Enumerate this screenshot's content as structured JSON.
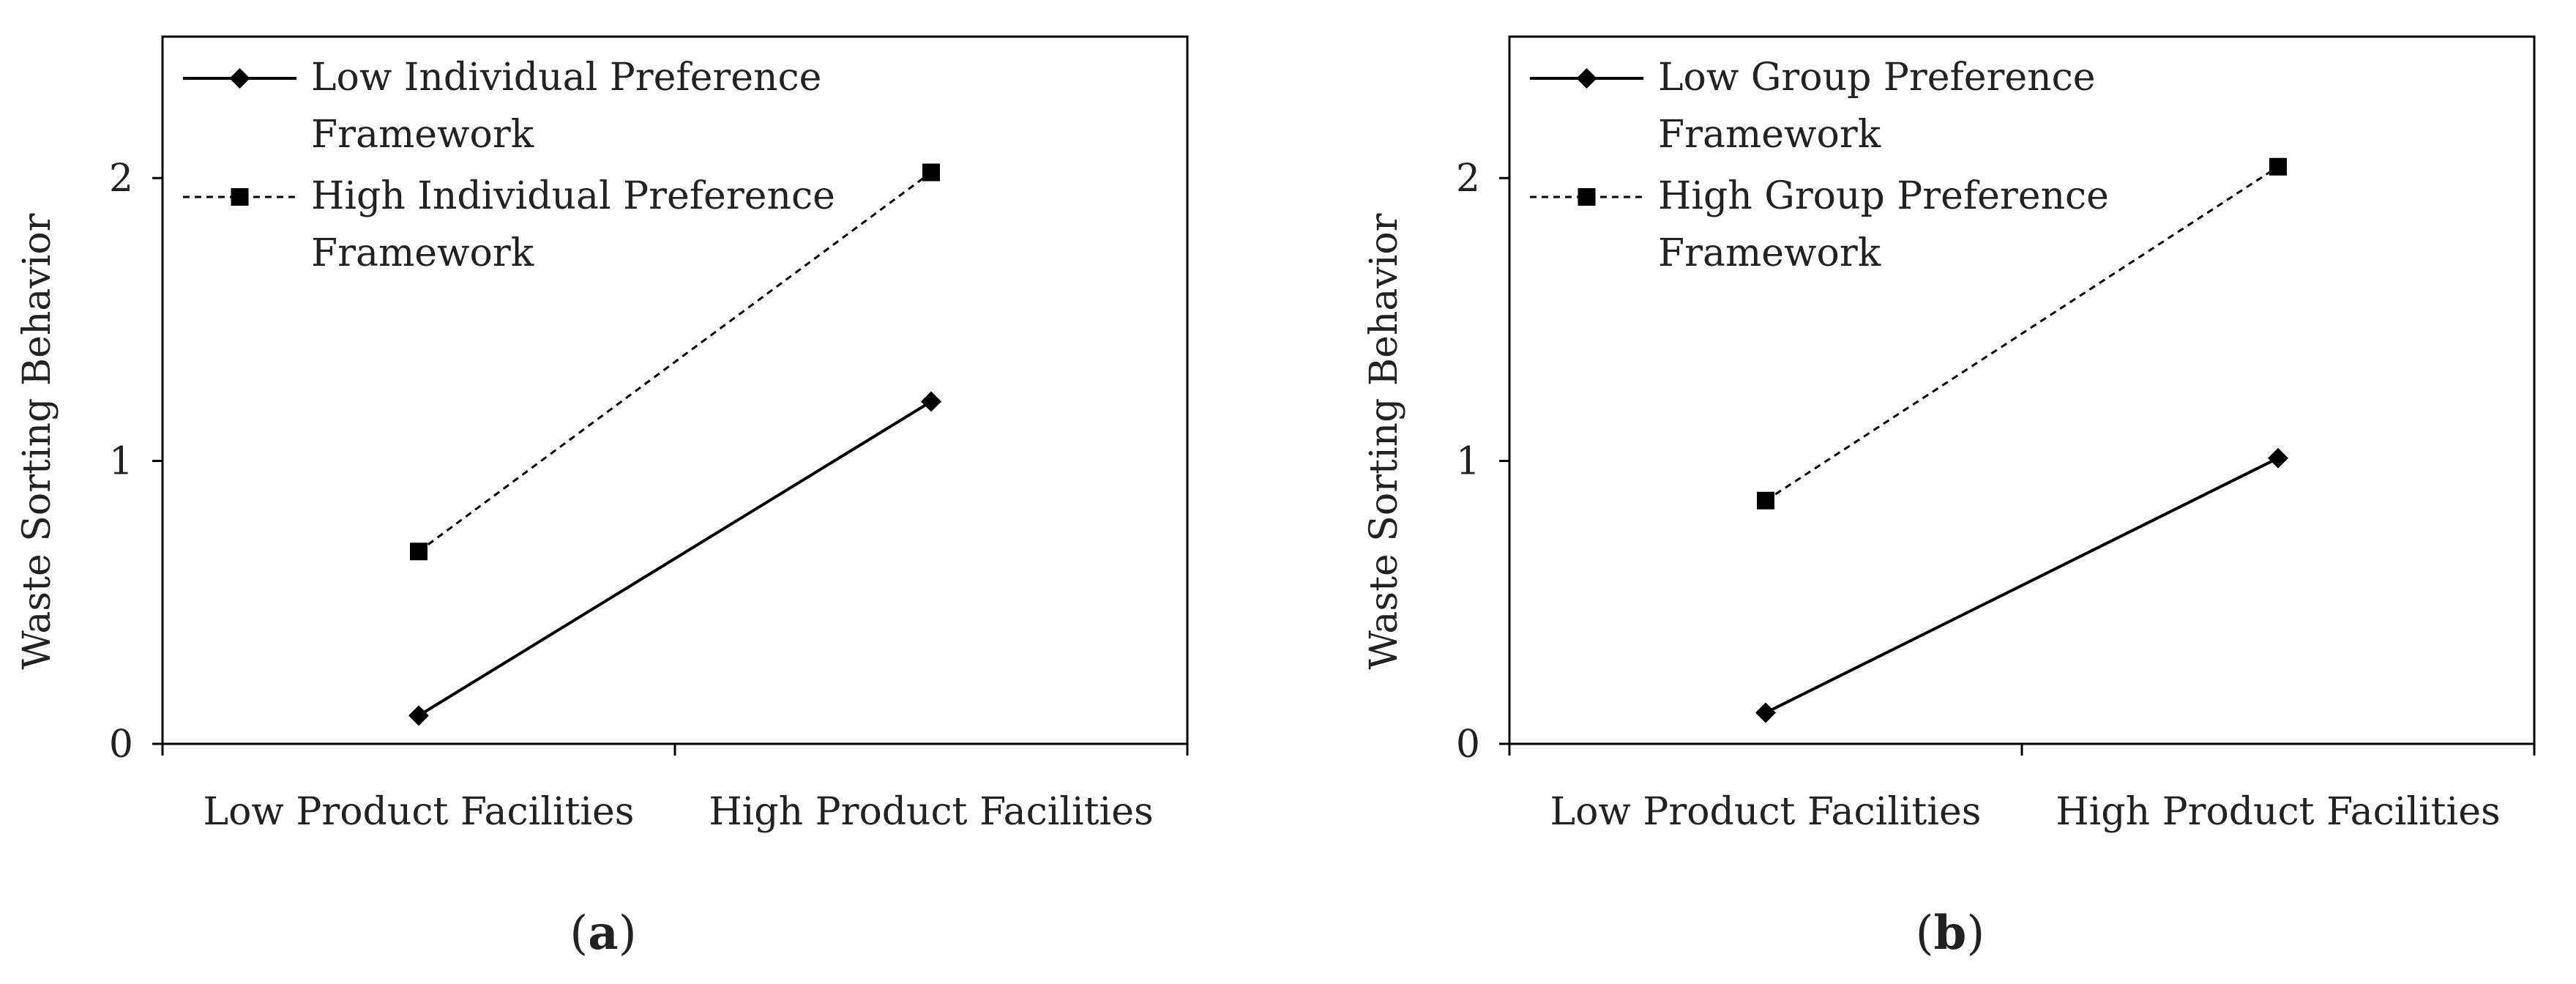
{
  "figure": {
    "panels": [
      {
        "label_open": "(",
        "label_letter": "a",
        "label_close": ")"
      },
      {
        "label_open": "(",
        "label_letter": "b",
        "label_close": ")"
      }
    ]
  },
  "chart_data": [
    {
      "type": "line",
      "categories": [
        "Low Product Facilities",
        "High Product Facilities"
      ],
      "ylabel": "Waste Sorting Behavior",
      "xlabel": "",
      "ylim": [
        0,
        2.5
      ],
      "yticks": [
        0,
        1,
        2
      ],
      "grid": false,
      "legend_position": "top-left",
      "series": [
        {
          "name_lines": [
            "Low Individual Preference",
            "Framework"
          ],
          "marker": "diamond",
          "dash": "solid",
          "values": [
            0.1,
            1.21
          ]
        },
        {
          "name_lines": [
            "High Individual Preference",
            "Framework"
          ],
          "marker": "square",
          "dash": "dashed",
          "values": [
            0.68,
            2.02
          ]
        }
      ]
    },
    {
      "type": "line",
      "categories": [
        "Low Product Facilities",
        "High Product Facilities"
      ],
      "ylabel": "Waste Sorting Behavior",
      "xlabel": "",
      "ylim": [
        0,
        2.5
      ],
      "yticks": [
        0,
        1,
        2
      ],
      "grid": false,
      "legend_position": "top-left",
      "series": [
        {
          "name_lines": [
            "Low Group Preference",
            "Framework"
          ],
          "marker": "diamond",
          "dash": "solid",
          "values": [
            0.11,
            1.01
          ]
        },
        {
          "name_lines": [
            "High Group Preference",
            "Framework"
          ],
          "marker": "square",
          "dash": "dashed",
          "values": [
            0.86,
            2.04
          ]
        }
      ]
    }
  ]
}
